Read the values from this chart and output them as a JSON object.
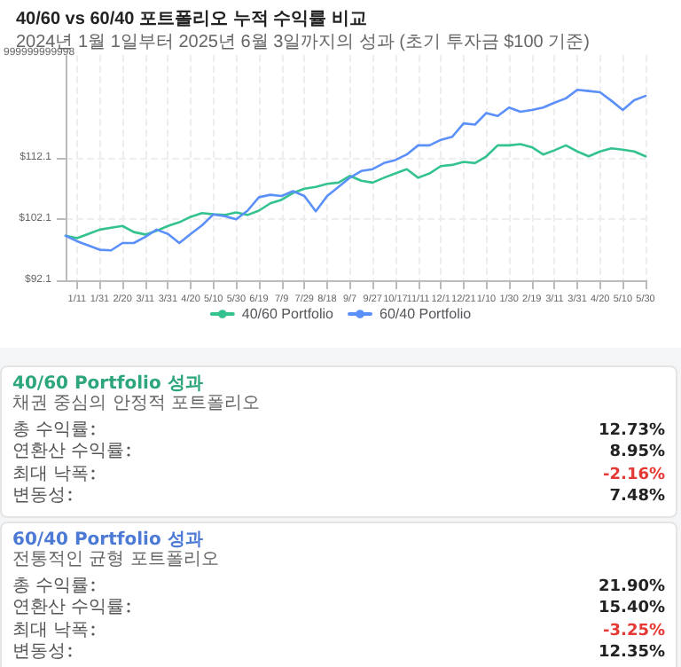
{
  "chart_data": [
    {
      "type": "line",
      "title": "40/60 vs 60/40 포트폴리오 누적 수익률 비교",
      "subtitle": "2024년 1월 1일부터 2025년 6월 3일까지의 성과 (초기 투자금 $100 기준)",
      "categories": [
        null,
        "1/11",
        null,
        "1/31",
        null,
        "2/20",
        null,
        "3/11",
        null,
        "3/31",
        null,
        "4/20",
        null,
        "5/10",
        null,
        "5/30",
        null,
        "6/19",
        null,
        "7/9",
        null,
        "7/29",
        null,
        "8/18",
        null,
        "9/7",
        null,
        "9/27",
        null,
        "10/17",
        null,
        "11/11",
        null,
        "12/1",
        null,
        "12/21",
        null,
        "1/10",
        null,
        "1/30",
        null,
        "2/19",
        null,
        "3/11",
        null,
        "3/31",
        null,
        "4/20",
        null,
        "5/10",
        null,
        "5/30"
      ],
      "series": [
        {
          "name": "40/60 Portfolio",
          "color": "#34c38f",
          "values": [
            99.4,
            99.0,
            99.7,
            100.4,
            100.7,
            101.0,
            100.0,
            99.6,
            100.2,
            101.0,
            101.6,
            102.5,
            103.1,
            102.9,
            102.8,
            103.2,
            102.8,
            103.5,
            104.7,
            105.3,
            106.4,
            107.1,
            107.4,
            107.9,
            108.1,
            109.2,
            108.4,
            108.1,
            108.9,
            109.6,
            110.3,
            108.9,
            109.6,
            110.8,
            111.0,
            111.5,
            111.3,
            112.4,
            114.2,
            114.2,
            114.4,
            113.9,
            112.7,
            113.4,
            114.2,
            113.2,
            112.4,
            113.2,
            113.7,
            113.5,
            113.2,
            112.4
          ]
        },
        {
          "name": "60/40 Portfolio",
          "color": "#5b8ff9",
          "values": [
            99.4,
            98.5,
            97.8,
            97.1,
            97.0,
            98.2,
            98.2,
            99.2,
            100.4,
            99.7,
            98.2,
            99.7,
            101.1,
            102.9,
            102.6,
            102.1,
            103.5,
            105.7,
            106.1,
            105.9,
            106.7,
            105.9,
            103.4,
            105.9,
            107.4,
            108.9,
            110.0,
            110.3,
            111.3,
            111.8,
            112.7,
            114.2,
            114.2,
            115.1,
            115.6,
            117.8,
            117.6,
            119.5,
            119.0,
            120.4,
            119.7,
            120.0,
            120.4,
            121.2,
            121.9,
            123.3,
            123.1,
            122.9,
            121.5,
            120.0,
            121.6,
            122.3
          ]
        }
      ],
      "ylim": [
        92.1,
        129
      ],
      "yticks": [
        {
          "value": 92.1,
          "label": "$92.1"
        },
        {
          "value": 102.1,
          "label": "$102.1"
        },
        {
          "value": 112.1,
          "label": "$112.1"
        }
      ],
      "annotations": [
        "999999999998"
      ],
      "grid": true,
      "legend": "bottom",
      "marker": "none",
      "line_style": "solid"
    },
    {
      "type": "other",
      "title": "40/60 Portfolio 성과",
      "subtitle": "채권 중심의 안정적 포트폴리오",
      "categories": [
        "총 수익률",
        "연환산 수익률",
        "최대 낙폭",
        "변동성"
      ],
      "values": [
        12.73,
        8.95,
        -2.16,
        7.48
      ],
      "value_labels": [
        "12.73%",
        "8.95%",
        "-2.16%",
        "7.48%"
      ]
    },
    {
      "type": "other",
      "title": "60/40 Portfolio 성과",
      "subtitle": "전통적인 균형 포트폴리오",
      "categories": [
        "총 수익률",
        "연환산 수익률",
        "최대 낙폭",
        "변동성"
      ],
      "values": [
        21.9,
        15.4,
        -3.25,
        12.35
      ],
      "value_labels": [
        "21.90%",
        "15.40%",
        "-3.25%",
        "12.35%"
      ]
    }
  ]
}
